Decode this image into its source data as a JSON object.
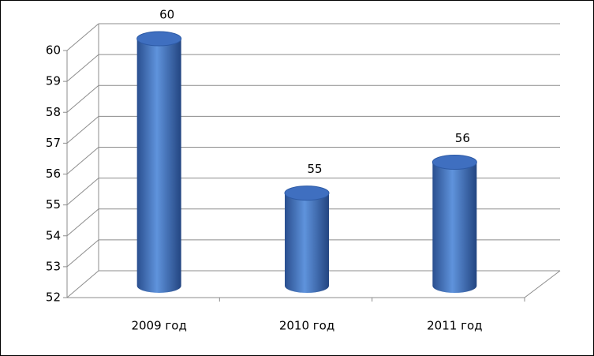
{
  "chart_data": {
    "type": "bar",
    "categories": [
      "2009 год",
      "2010 год",
      "2011 год"
    ],
    "values": [
      60,
      55,
      56
    ],
    "color": "#4f81bd",
    "ylim": [
      52,
      60
    ],
    "yticks": [
      52,
      53,
      54,
      55,
      56,
      57,
      58,
      59,
      60
    ],
    "grid": true
  }
}
